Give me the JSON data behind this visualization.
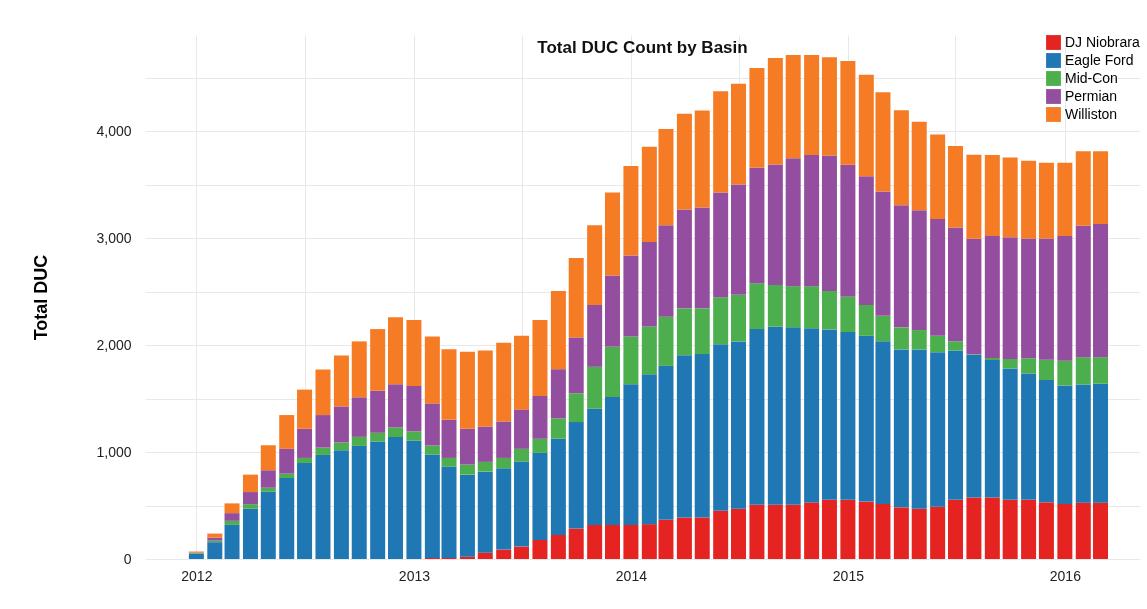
{
  "chart_data": {
    "type": "bar",
    "title": "Total DUC Count by Basin",
    "ylabel": "Total DUC",
    "stacked": true,
    "x": [
      "2012-01",
      "2012-02",
      "2012-03",
      "2012-04",
      "2012-05",
      "2012-06",
      "2012-07",
      "2012-08",
      "2012-09",
      "2012-10",
      "2012-11",
      "2012-12",
      "2013-01",
      "2013-02",
      "2013-03",
      "2013-04",
      "2013-05",
      "2013-06",
      "2013-07",
      "2013-08",
      "2013-09",
      "2013-10",
      "2013-11",
      "2013-12",
      "2014-01",
      "2014-02",
      "2014-03",
      "2014-04",
      "2014-05",
      "2014-06",
      "2014-07",
      "2014-08",
      "2014-09",
      "2014-10",
      "2014-11",
      "2014-12",
      "2015-01",
      "2015-02",
      "2015-03",
      "2015-04",
      "2015-05",
      "2015-06",
      "2015-07",
      "2015-08",
      "2015-09",
      "2015-10",
      "2015-11",
      "2015-12",
      "2016-01",
      "2016-02",
      "2016-03"
    ],
    "series": [
      {
        "name": "DJ Niobrara",
        "color": "#e52421",
        "values": [
          0,
          0,
          0,
          0,
          0,
          0,
          0,
          0,
          0,
          0,
          0,
          0,
          0,
          10,
          10,
          22,
          59,
          88,
          116,
          178,
          225,
          285,
          319,
          319,
          319,
          326,
          366,
          388,
          388,
          451,
          470,
          507,
          507,
          507,
          529,
          553,
          553,
          537,
          515,
          483,
          470,
          489,
          553,
          575,
          575,
          553,
          553,
          530,
          515,
          527,
          527
        ]
      },
      {
        "name": "Eagle Ford",
        "color": "#1f77b4",
        "values": [
          50,
          157,
          319,
          470,
          629,
          757,
          898,
          973,
          1017,
          1058,
          1099,
          1142,
          1108,
          967,
          854,
          767,
          758,
          760,
          795,
          814,
          902,
          995,
          1086,
          1196,
          1315,
          1402,
          1440,
          1518,
          1528,
          1558,
          1565,
          1643,
          1665,
          1659,
          1628,
          1594,
          1569,
          1550,
          1521,
          1477,
          1490,
          1445,
          1397,
          1334,
          1286,
          1229,
          1181,
          1144,
          1108,
          1105,
          1112
        ]
      },
      {
        "name": "Mid-Con",
        "color": "#4cae4c",
        "values": [
          5,
          15,
          38,
          43,
          38,
          41,
          47,
          69,
          72,
          84,
          81,
          88,
          85,
          84,
          81,
          94,
          91,
          97,
          119,
          132,
          188,
          269,
          392,
          469,
          447,
          447,
          460,
          438,
          428,
          439,
          435,
          429,
          391,
          385,
          394,
          359,
          330,
          289,
          238,
          206,
          181,
          153,
          86,
          5,
          19,
          89,
          143,
          190,
          232,
          255,
          248
        ]
      },
      {
        "name": "Permian",
        "color": "#944ea0",
        "values": [
          5,
          28,
          72,
          113,
          162,
          232,
          273,
          304,
          338,
          370,
          394,
          404,
          425,
          394,
          357,
          335,
          331,
          341,
          369,
          400,
          460,
          523,
          579,
          667,
          758,
          789,
          855,
          924,
          943,
          979,
          1032,
          1080,
          1127,
          1196,
          1227,
          1267,
          1235,
          1203,
          1162,
          1143,
          1121,
          1092,
          1064,
          1080,
          1140,
          1137,
          1121,
          1134,
          1165,
          1229,
          1245
        ]
      },
      {
        "name": "Williston",
        "color": "#f57b25",
        "values": [
          10,
          38,
          91,
          163,
          235,
          316,
          366,
          426,
          476,
          523,
          576,
          626,
          617,
          626,
          660,
          719,
          711,
          736,
          689,
          711,
          732,
          742,
          745,
          776,
          836,
          892,
          901,
          895,
          907,
          946,
          943,
          933,
          995,
          966,
          935,
          918,
          969,
          950,
          928,
          887,
          826,
          791,
          762,
          787,
          759,
          746,
          725,
          708,
          686,
          698,
          682
        ]
      }
    ],
    "xlim": [
      "2011-10-15",
      "2016-04-28"
    ],
    "xticks": [
      "2012",
      {
        "value": "2012-07",
        "label": null
      },
      "2013",
      {
        "value": "2013-07",
        "label": null
      },
      "2014",
      {
        "value": "2014-07",
        "label": null
      },
      "2015",
      {
        "value": "2015-07",
        "label": null
      },
      "2016"
    ],
    "ylim": [
      0,
      4900
    ],
    "yticks": [
      0,
      {
        "value": 500,
        "label": null
      },
      {
        "value": 1000,
        "label": "1,000"
      },
      {
        "value": 1500,
        "label": null
      },
      {
        "value": 2000,
        "label": "2,000"
      },
      {
        "value": 2500,
        "label": null
      },
      {
        "value": 3000,
        "label": "3,000"
      },
      {
        "value": 3500,
        "label": null
      },
      {
        "value": 4000,
        "label": "4,000"
      },
      {
        "value": 4500,
        "label": null
      }
    ],
    "grid": true,
    "legend": "top right"
  }
}
